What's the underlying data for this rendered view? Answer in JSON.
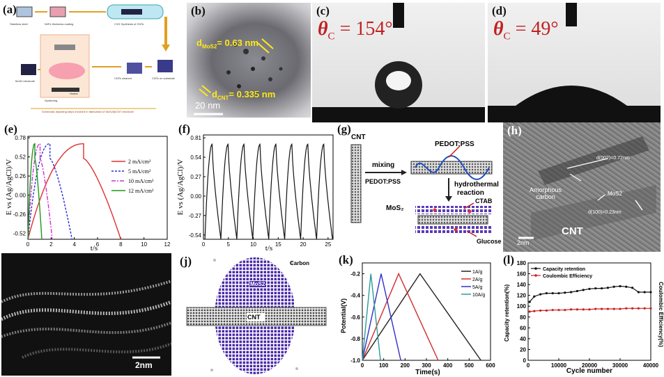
{
  "panels": {
    "a": {
      "label": "(a)",
      "step1": "Stainless steel",
      "step2": "Ni/Fe thickness coating",
      "step3": "CVD Synthesis of CNTs",
      "step4": "CNTs on substrate",
      "step5": "CNTs cleaned",
      "step6": "MoS2 electrode",
      "step7": "Sputtering",
      "step8": "Heater",
      "caption": "Schematic depicting steps involved in fabrication of MoS2@CNT electrode"
    },
    "b": {
      "label": "(b)",
      "d1": "d",
      "d1_sub": "MoS2",
      "d1_val": "= 0.63 nm",
      "d2": "d",
      "d2_sub": "CNT",
      "d2_val": "= 0.335 nm",
      "scale": "20 nm"
    },
    "c": {
      "label": "(c)",
      "theta": "θ",
      "theta_sub": "C",
      "value": "= 154°"
    },
    "d": {
      "label": "(d)",
      "theta": "θ",
      "theta_sub": "C",
      "value": "= 49°"
    },
    "e": {
      "label": "(e)",
      "xlabel": "t/s",
      "ylabel": "E vs (Ag/AgCl)/V",
      "xticks": [
        "0",
        "2",
        "4",
        "6",
        "8",
        "10",
        "12"
      ],
      "yticks": [
        "0.78",
        "0.52",
        "0.26",
        "0.00",
        "-0.26",
        "-0.52"
      ]
    },
    "f": {
      "label": "(f)",
      "xlabel": "t/s",
      "ylabel": "E vs (Ag/AgCl)/V",
      "xticks": [
        "0",
        "5",
        "10",
        "15",
        "20",
        "25"
      ],
      "yticks": [
        "0.81",
        "0.54",
        "0.27",
        "0.00",
        "-0.27",
        "-0.54"
      ]
    },
    "g": {
      "label": "(g)",
      "cnt": "CNT",
      "mixing": "mixing",
      "pedot": "PEDOT:PSS",
      "pedot2": "PEDOT:PSS",
      "hydro1": "hydrothermal",
      "hydro2": "reaction",
      "mos2": "MoS₂",
      "ctab": "CTAB",
      "glucose": "Glucose"
    },
    "h": {
      "label": "(h)",
      "d002": "d(002)=0.72nm",
      "amorphous": "Amorphous",
      "carbon": "carbon",
      "mos2": "MoS2",
      "d100": "d(100)=0.23nm",
      "cnt": "CNT",
      "scale": "2nm"
    },
    "i": {
      "label": "(i)",
      "scale": "2nm"
    },
    "j": {
      "label": "(j)",
      "carbon": "Carbon",
      "mos2": "MoS2",
      "cnt": "CNT"
    },
    "k": {
      "label": "(k)",
      "xlabel": "Time(s)",
      "ylabel": "Potential(V)",
      "xticks": [
        "0",
        "100",
        "200",
        "300",
        "400",
        "500",
        "600"
      ],
      "yticks": [
        "-0.2",
        "-0.4",
        "-0.6",
        "-0.8",
        "-1.0"
      ]
    },
    "l": {
      "label": "(l)",
      "xlabel": "Cycle number",
      "ylabel": "Capacity retention(%)",
      "ylabel2": "Coulombic Efficiency(%)",
      "xticks": [
        "0",
        "10000",
        "20000",
        "30000",
        "40000"
      ],
      "yticks": [
        "0",
        "20",
        "40",
        "60",
        "80",
        "100",
        "120",
        "140",
        "160",
        "180"
      ]
    }
  },
  "chart_data": [
    {
      "id": "e",
      "type": "line",
      "title": "",
      "xlabel": "t/s",
      "ylabel": "E vs (Ag/AgCl)/V",
      "xlim": [
        0,
        12
      ],
      "ylim": [
        -0.6,
        0.8
      ],
      "series": [
        {
          "name": "2 mA/cm²",
          "color": "#e03030",
          "dash": "",
          "charge_end": 4.8,
          "discharge_end": 8.0
        },
        {
          "name": "5 mA/cm²",
          "color": "#2a2ad8",
          "dash": "3,2",
          "charge_end": 1.9,
          "discharge_end": 3.8
        },
        {
          "name": "10 mA/cm²",
          "color": "#d030d0",
          "dash": "6,2,2,2",
          "charge_end": 1.05,
          "discharge_end": 2.1
        },
        {
          "name": "12 mA/cm²",
          "color": "#1a9a1a",
          "dash": "",
          "charge_end": 0.6,
          "discharge_end": 1.2
        }
      ],
      "v_min": -0.6,
      "v_max": 0.7
    },
    {
      "id": "f",
      "type": "line",
      "xlabel": "t/s",
      "ylabel": "E vs (Ag/AgCl)/V",
      "xlim": [
        0,
        26
      ],
      "ylim": [
        -0.6,
        0.85
      ],
      "cycles": 8,
      "period": 3.2,
      "v_min": -0.6,
      "v_max": 0.72,
      "series": [
        {
          "name": "GCD",
          "color": "#111111"
        }
      ]
    },
    {
      "id": "k",
      "type": "line",
      "xlabel": "Time(s)",
      "ylabel": "Potential(V)",
      "xlim": [
        0,
        600
      ],
      "ylim": [
        -1.0,
        -0.1
      ],
      "v_min": -1.0,
      "v_max": -0.2,
      "series": [
        {
          "name": "1A/g",
          "color": "#222222",
          "charge_end": 270,
          "discharge_end": 555
        },
        {
          "name": "2A/g",
          "color": "#d03030",
          "charge_end": 170,
          "discharge_end": 355
        },
        {
          "name": "5A/g",
          "color": "#3030c8",
          "charge_end": 88,
          "discharge_end": 180
        },
        {
          "name": "10A/g",
          "color": "#2a9a9a",
          "charge_end": 40,
          "discharge_end": 85
        }
      ]
    },
    {
      "id": "l",
      "type": "scatter",
      "xlabel": "Cycle number",
      "ylabel": "Capacity retention(%)",
      "xlim": [
        0,
        40000
      ],
      "ylim": [
        0,
        180
      ],
      "series": [
        {
          "name": "Capacity retention",
          "color": "#111111",
          "x": [
            500,
            2000,
            4000,
            6000,
            8000,
            10000,
            12000,
            14000,
            16000,
            18000,
            20000,
            22000,
            24000,
            26000,
            28000,
            30000,
            32000,
            34000,
            36000,
            38000,
            40000
          ],
          "values": [
            108,
            118,
            122,
            124,
            124,
            124,
            125,
            126,
            128,
            130,
            132,
            133,
            133,
            134,
            136,
            137,
            136,
            134,
            126,
            126,
            126
          ]
        },
        {
          "name": "Coulombic Efficiency",
          "color": "#c82020",
          "x": [
            500,
            2000,
            4000,
            6000,
            8000,
            10000,
            12000,
            14000,
            16000,
            18000,
            20000,
            22000,
            24000,
            26000,
            28000,
            30000,
            32000,
            34000,
            36000,
            38000,
            40000
          ],
          "values": [
            90,
            91,
            92,
            92,
            93,
            93,
            93,
            94,
            94,
            94,
            94,
            95,
            95,
            95,
            95,
            95,
            96,
            96,
            96,
            96,
            96
          ]
        }
      ]
    }
  ]
}
